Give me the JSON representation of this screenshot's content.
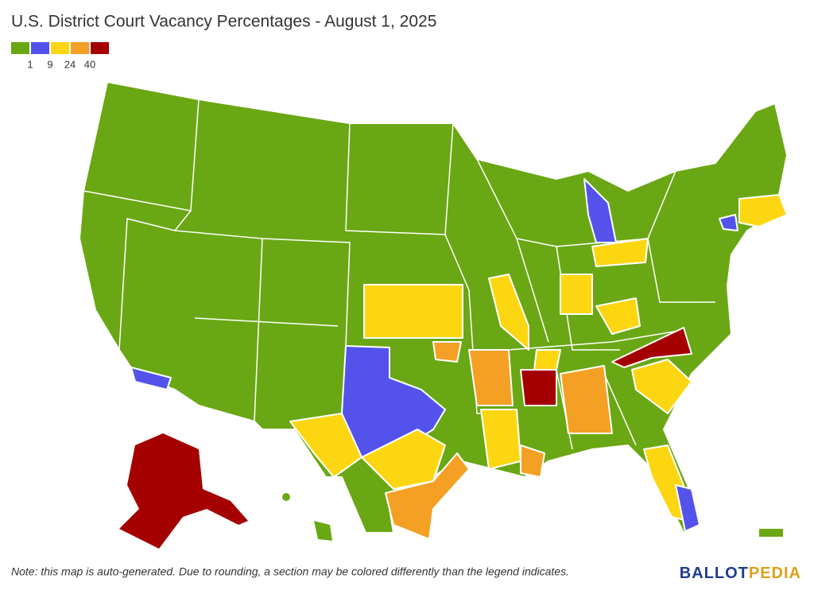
{
  "title": "U.S. District Court Vacancy Percentages - August 1, 2025",
  "legend": {
    "colors": [
      "#6aa714",
      "#5353ec",
      "#fdd612",
      "#f4a024",
      "#a50000"
    ],
    "breaks": [
      1,
      9,
      24,
      40
    ]
  },
  "note": "Note: this map is auto-generated. Due to rounding, a section may be colored differently than the legend indicates.",
  "logo": {
    "part1": "BALLOT",
    "part2": "PEDIA"
  }
}
